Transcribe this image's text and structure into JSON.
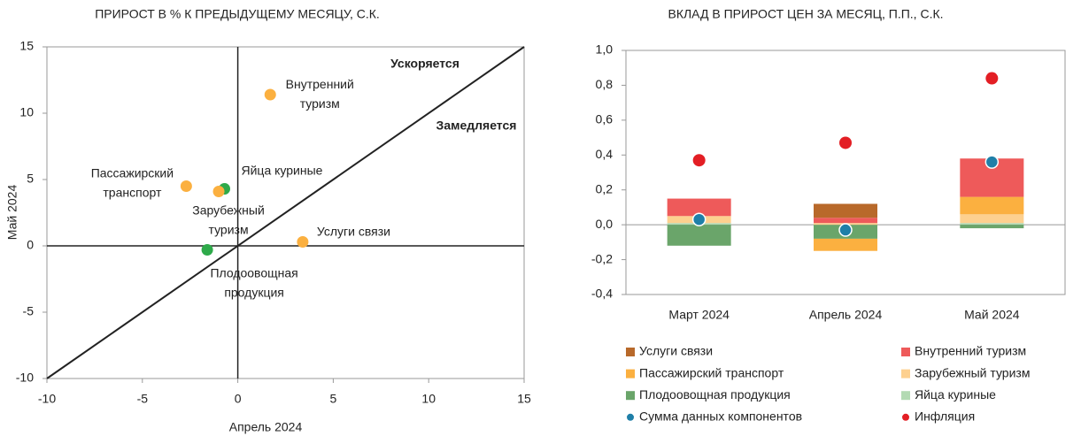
{
  "chart_data": [
    {
      "type": "scatter",
      "title": "ПРИРОСТ В % К ПРЕДЫДУЩЕМУ МЕСЯЦУ, С.К.",
      "x_label": "Апрель 2024",
      "y_label": "Май 2024",
      "xlim": [
        -10,
        15
      ],
      "ylim": [
        -10,
        15
      ],
      "xticks": [
        -10,
        -5,
        0,
        5,
        10,
        15
      ],
      "yticks": [
        -10,
        -5,
        0,
        5,
        10,
        15
      ],
      "annotations": [
        "Ускоряется",
        "Замедляется"
      ],
      "points": [
        {
          "label": "Внутренний\nтуризм",
          "x": 1.7,
          "y": 11.4,
          "color": "#fbb040"
        },
        {
          "label": "Пассажирский\nтранспорт",
          "x": -2.7,
          "y": 4.5,
          "color": "#fbb040"
        },
        {
          "label": "Яйца куриные",
          "x": -0.7,
          "y": 4.3,
          "color": "#2eaa4a"
        },
        {
          "label": "Зарубежный\nтуризм",
          "x": -1.0,
          "y": 4.1,
          "color": "#fbb040"
        },
        {
          "label": "Услуги связи",
          "x": 3.4,
          "y": 0.3,
          "color": "#fbb040"
        },
        {
          "label": "Плодоовощная\nпродукция",
          "x": -1.6,
          "y": -0.3,
          "color": "#2eaa4a"
        }
      ]
    },
    {
      "type": "stacked_bar",
      "title": "ВКЛАД В ПРИРОСТ ЦЕН ЗА МЕСЯЦ, П.П., С.К.",
      "categories": [
        "Март 2024",
        "Апрель 2024",
        "Май 2024"
      ],
      "ylim": [
        -0.4,
        1.0
      ],
      "yticks": [
        {
          "value": 1.0,
          "label": "1,0"
        },
        {
          "value": 0.8,
          "label": "0,8"
        },
        {
          "value": 0.6,
          "label": "0,6"
        },
        {
          "value": 0.4,
          "label": "0,4"
        },
        {
          "value": 0.2,
          "label": "0,2"
        },
        {
          "value": 0,
          "label": "0,0"
        },
        {
          "value": -0.2,
          "label": "-0,2"
        },
        {
          "value": -0.4,
          "label": "-0,4"
        }
      ],
      "series": [
        {
          "name": "Услуги связи",
          "color": "#b8692a",
          "values": [
            0,
            0.08,
            0
          ]
        },
        {
          "name": "Внутренний туризм",
          "color": "#ee5a5a",
          "values": [
            0.1,
            0.03,
            0.22
          ]
        },
        {
          "name": "Пассажирский транспорт",
          "color": "#fbb040",
          "values": [
            0,
            -0.07,
            0.1
          ]
        },
        {
          "name": "Зарубежный туризм",
          "color": "#fdd08f",
          "values": [
            0.04,
            0.01,
            0.05
          ]
        },
        {
          "name": "Плодоовощная продукция",
          "color": "#6aa56a",
          "values": [
            -0.12,
            -0.08,
            -0.02
          ]
        },
        {
          "name": "Яйца куриные",
          "color": "#b3dab3",
          "values": [
            0.01,
            0,
            0.01
          ]
        },
        {
          "name": "Сумма данных компонентов",
          "type": "dot",
          "color": "#1f7fa8",
          "values": [
            0.03,
            -0.03,
            0.36
          ]
        },
        {
          "name": "Инфляция",
          "type": "dot",
          "color": "#e31e24",
          "values": [
            0.37,
            0.47,
            0.84
          ]
        }
      ]
    }
  ]
}
